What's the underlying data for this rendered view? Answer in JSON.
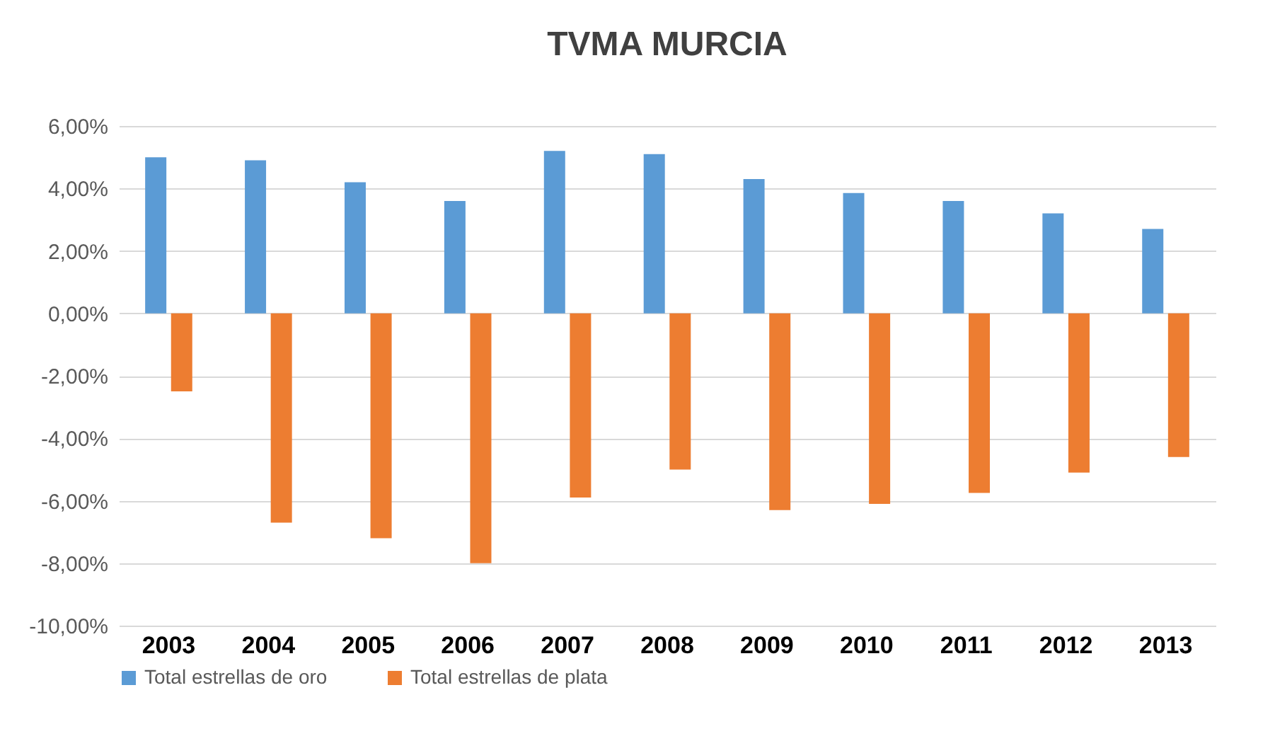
{
  "chart_data": {
    "type": "bar",
    "title": "TVMA MURCIA",
    "categories": [
      "2003",
      "2004",
      "2005",
      "2006",
      "2007",
      "2008",
      "2009",
      "2010",
      "2011",
      "2012",
      "2013"
    ],
    "series": [
      {
        "name": "Total estrellas de oro",
        "color": "#5b9bd5",
        "values": [
          5.0,
          4.9,
          4.2,
          3.6,
          5.2,
          5.1,
          4.3,
          3.85,
          3.6,
          3.2,
          2.7
        ]
      },
      {
        "name": "Total estrellas de plata",
        "color": "#ed7d31",
        "values": [
          -2.5,
          -6.7,
          -7.2,
          -8.0,
          -5.9,
          -5.0,
          -6.3,
          -6.1,
          -5.75,
          -5.1,
          -4.6
        ]
      }
    ],
    "ylim": [
      -10,
      6
    ],
    "yticks": [
      {
        "value": -10,
        "label": "-10,00%"
      },
      {
        "value": -8,
        "label": "-8,00%"
      },
      {
        "value": -6,
        "label": "-6,00%"
      },
      {
        "value": -4,
        "label": "-4,00%"
      },
      {
        "value": -2,
        "label": "-2,00%"
      },
      {
        "value": 0,
        "label": "0,00%"
      },
      {
        "value": 2,
        "label": "2,00%"
      },
      {
        "value": 4,
        "label": "4,00%"
      },
      {
        "value": 6,
        "label": "6,00%"
      }
    ],
    "grid": "y",
    "legend": "bottom"
  }
}
